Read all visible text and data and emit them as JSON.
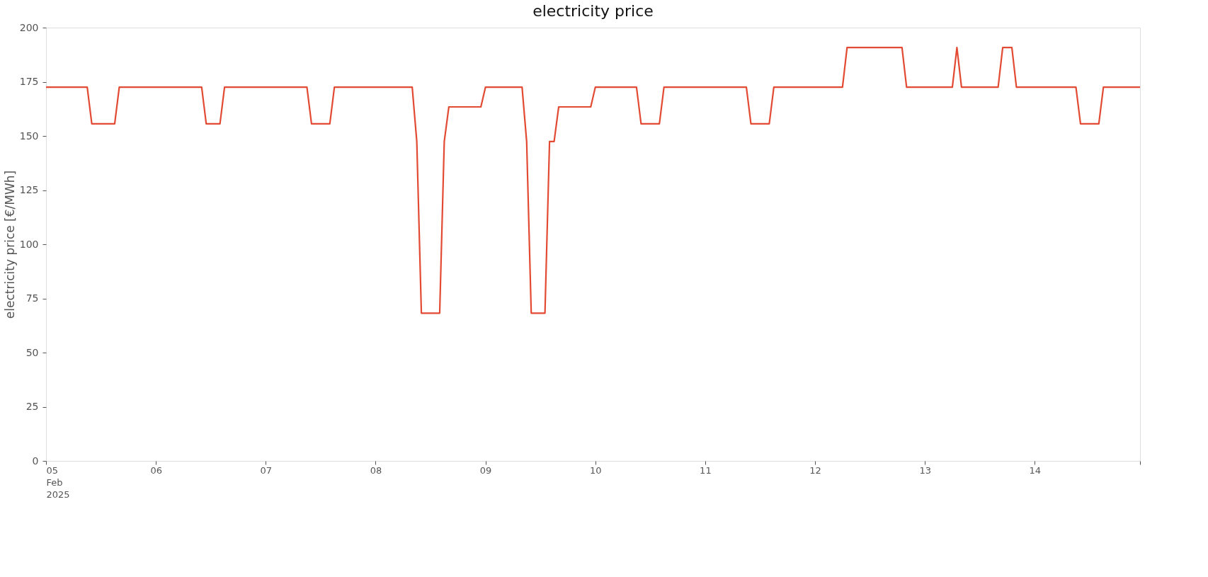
{
  "chart_data": {
    "type": "line",
    "title": "electricity price",
    "ylabel": "electricity price [€/MWh]",
    "x": [
      "2025-02-05T00:00",
      "2025-02-05T09:00",
      "2025-02-05T10:00",
      "2025-02-05T15:00",
      "2025-02-05T16:00",
      "2025-02-06T10:00",
      "2025-02-06T11:00",
      "2025-02-06T14:00",
      "2025-02-06T15:00",
      "2025-02-07T09:00",
      "2025-02-07T10:00",
      "2025-02-07T14:00",
      "2025-02-07T15:00",
      "2025-02-08T08:00",
      "2025-02-08T09:00",
      "2025-02-08T10:00",
      "2025-02-08T14:00",
      "2025-02-08T15:00",
      "2025-02-08T16:00",
      "2025-02-08T23:00",
      "2025-02-09T00:00",
      "2025-02-09T08:00",
      "2025-02-09T09:00",
      "2025-02-09T10:00",
      "2025-02-09T13:00",
      "2025-02-09T14:00",
      "2025-02-09T15:00",
      "2025-02-09T16:00",
      "2025-02-09T23:00",
      "2025-02-10T00:00",
      "2025-02-10T09:00",
      "2025-02-10T10:00",
      "2025-02-10T14:00",
      "2025-02-10T15:00",
      "2025-02-11T09:00",
      "2025-02-11T10:00",
      "2025-02-11T14:00",
      "2025-02-11T15:00",
      "2025-02-12T06:00",
      "2025-02-12T07:00",
      "2025-02-12T19:00",
      "2025-02-12T20:00",
      "2025-02-13T06:00",
      "2025-02-13T07:00",
      "2025-02-13T08:00",
      "2025-02-13T16:00",
      "2025-02-13T17:00",
      "2025-02-13T19:00",
      "2025-02-13T20:00",
      "2025-02-14T09:00",
      "2025-02-14T10:00",
      "2025-02-14T14:00",
      "2025-02-14T15:00",
      "2025-02-14T23:00"
    ],
    "series": [
      {
        "color": "#e24a33",
        "values": [
          172.5,
          172.5,
          155.6,
          155.6,
          172.5,
          172.5,
          155.6,
          155.6,
          172.5,
          172.5,
          155.6,
          155.6,
          172.5,
          172.5,
          147.4,
          68.2,
          68.2,
          147.4,
          163.4,
          163.4,
          172.5,
          172.5,
          147.4,
          68.2,
          68.2,
          147.4,
          147.4,
          163.4,
          163.4,
          172.5,
          172.5,
          155.6,
          155.6,
          172.5,
          172.5,
          155.6,
          155.6,
          172.5,
          172.5,
          190.8,
          190.8,
          172.5,
          172.5,
          190.8,
          172.5,
          172.5,
          190.8,
          190.8,
          172.5,
          172.5,
          155.6,
          155.6,
          172.5,
          172.5
        ]
      }
    ],
    "xlim": [
      "2025-02-05T00:00",
      "2025-02-14T23:00"
    ],
    "xticks": [
      {
        "value": "2025-02-05T00:00",
        "label": "05\nFeb\n2025"
      },
      {
        "value": "2025-02-06T00:00",
        "label": "06"
      },
      {
        "value": "2025-02-07T00:00",
        "label": "07"
      },
      {
        "value": "2025-02-08T00:00",
        "label": "08"
      },
      {
        "value": "2025-02-09T00:00",
        "label": "09"
      },
      {
        "value": "2025-02-10T00:00",
        "label": "10"
      },
      {
        "value": "2025-02-11T00:00",
        "label": "11"
      },
      {
        "value": "2025-02-12T00:00",
        "label": "12"
      },
      {
        "value": "2025-02-13T00:00",
        "label": "13"
      },
      {
        "value": "2025-02-14T00:00",
        "label": "14"
      },
      {
        "value": "2025-02-14T23:00",
        "label": null
      }
    ],
    "ylim": [
      0,
      200
    ],
    "yticks": [
      0,
      25,
      50,
      75,
      100,
      125,
      150,
      175,
      200
    ],
    "grid": false,
    "marker": "none",
    "line_style": "solid"
  }
}
